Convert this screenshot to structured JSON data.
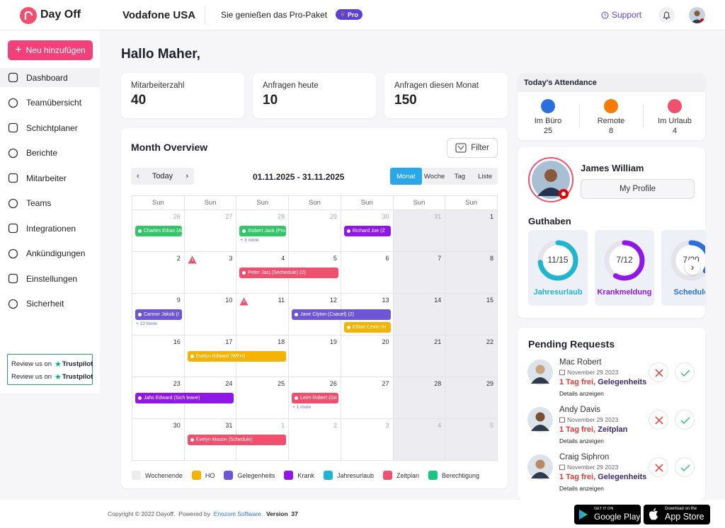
{
  "header": {
    "logo": "Day Off",
    "company": "Vodafone USA",
    "plan": "Sie genießen das Pro-Paket",
    "badge": "Pro",
    "support": "Support"
  },
  "sidebar": {
    "add_button": "Neu hinzufügen",
    "nav": [
      "Dashboard",
      "Teamübersicht",
      "Schichtplaner",
      "Berichte",
      "Mitarbeiter",
      "Teams",
      "Integrationen",
      "Ankündigungen",
      "Einstellungen",
      "Sicherheit"
    ],
    "review": [
      {
        "text": "Review us on",
        "brand": "Trustpilot"
      },
      {
        "text": "Review us on",
        "brand": "Trustpilot"
      }
    ]
  },
  "greeting": "Hallo Maher,",
  "stats": [
    {
      "label": "Mitarbeiterzahl",
      "value": 40
    },
    {
      "label": "Anfragen heute",
      "value": 10
    },
    {
      "label": "Anfragen diesen Monat",
      "value": 150
    }
  ],
  "attendance": {
    "title": "Today's Attendance",
    "items": [
      {
        "label": "Im Büro",
        "value": 25,
        "color": "#2a6fdb"
      },
      {
        "label": "Remote",
        "value": 8,
        "color": "#f57c00"
      },
      {
        "label": "Im Urlaub",
        "value": 4,
        "color": "#f0506e"
      }
    ]
  },
  "profile": {
    "name": "James William",
    "button": "My Profile"
  },
  "balance": {
    "title": "Guthaben",
    "items": [
      {
        "label": "11/15",
        "used": 11,
        "total": 15,
        "name": "Jahresurlaub",
        "color": "#1fb5d1"
      },
      {
        "label": "7/12",
        "used": 7,
        "total": 12,
        "name": "Krankmeldung",
        "color": "#8f17e8"
      },
      {
        "label": "7/20",
        "used": 7,
        "total": 20,
        "name": "Schedule",
        "color": "#2a6fdb"
      }
    ]
  },
  "calendar": {
    "title": "Month Overview",
    "filter": "Filter",
    "today": "Today",
    "range": "01.11.2025 - 31.11.2025",
    "views": [
      "Monat",
      "Woche",
      "Tag",
      "Liste"
    ],
    "active_view": 0,
    "weekdays": [
      "Sun",
      "Sun",
      "Sun",
      "Sun",
      "Sun",
      "Sun",
      "Sun"
    ],
    "weeks": [
      [
        26,
        27,
        28,
        29,
        30,
        31,
        1
      ],
      [
        2,
        3,
        4,
        5,
        6,
        7,
        8
      ],
      [
        9,
        10,
        11,
        12,
        13,
        14,
        15
      ],
      [
        16,
        17,
        18,
        19,
        20,
        21,
        22
      ],
      [
        23,
        24,
        25,
        26,
        27,
        28,
        29
      ],
      [
        30,
        31,
        1,
        2,
        3,
        4,
        5
      ]
    ],
    "events": [
      {
        "text": "Charles Ethan (Al",
        "color": "#34c46a",
        "cell": 0,
        "span": 1,
        "slot": 0
      },
      {
        "text": "Robert Jack (Pro",
        "color": "#34c46a",
        "cell": 2,
        "span": 1,
        "slot": 0
      },
      {
        "text": "Richard Joe (Z",
        "color": "#8f17e8",
        "cell": 4,
        "span": 1,
        "slot": 0
      },
      {
        "text": "Peter Jacj (Sechedule) (2)",
        "color": "#f0506e",
        "cell": 9,
        "span": 2,
        "slot": 0
      },
      {
        "text": "Cannor Jakob (I",
        "color": "#6e55d6",
        "cell": 14,
        "span": 1,
        "slot": 0
      },
      {
        "text": "Jane Clyton (Csauel) (2)",
        "color": "#6e55d6",
        "cell": 17,
        "span": 2,
        "slot": 0
      },
      {
        "text": "Ethan Cexin (H",
        "color": "#f5b301",
        "cell": 18,
        "span": 1,
        "slot": 1
      },
      {
        "text": "Evelyn Edward (WFH)",
        "color": "#f5b301",
        "cell": 22,
        "span": 2,
        "slot": 0
      },
      {
        "text": "Jahs Edward (Sich leave)",
        "color": "#8f17e8",
        "cell": 28,
        "span": 2,
        "slot": 0
      },
      {
        "text": "Leim Robert (Ge",
        "color": "#f0506e",
        "cell": 31,
        "span": 1,
        "slot": 0
      },
      {
        "text": "Evelyn Mason (Schedule)",
        "color": "#f0506e",
        "cell": 36,
        "span": 2,
        "slot": 0
      }
    ],
    "more": [
      {
        "text": "+ 3 more",
        "cell": 2
      },
      {
        "text": "+ 13 more",
        "cell": 14
      },
      {
        "text": "+ 1 more",
        "cell": 31
      }
    ],
    "alert_cells": [
      8,
      16
    ],
    "legend": [
      {
        "label": "Wochenende",
        "color": "#ececf0"
      },
      {
        "label": "HO",
        "color": "#f5b301"
      },
      {
        "label": "Gelegenheits",
        "color": "#6e55d6"
      },
      {
        "label": "Krank",
        "color": "#8f17e8"
      },
      {
        "label": "Jahresurlaub",
        "color": "#1fb5d1"
      },
      {
        "label": "Zeitplan",
        "color": "#f0506e"
      },
      {
        "label": "Berechtigung",
        "color": "#16c784"
      }
    ]
  },
  "requests": {
    "title": "Pending Requests",
    "items": [
      {
        "name": "Mac Robert",
        "date": "November 29 2023",
        "amount": "1 Tag frei,",
        "kind": "Gelegenheits",
        "link": "Details anzeigen"
      },
      {
        "name": "Andy Davis",
        "date": "November 29 2023",
        "amount": "1 Tag frei,",
        "kind": "Zeitplan",
        "link": "Details anzeigen"
      },
      {
        "name": "Craig Siphron",
        "date": "November 29 2023",
        "amount": "1 Tag frei,",
        "kind": "Gelegenheits",
        "link": "Details anzeigen"
      }
    ]
  },
  "footer": {
    "copyright": "Copyright © 2022 Dayoff.  Powered by",
    "company": "Enozom Software.",
    "version_label": "Version",
    "version": 37,
    "google": {
      "small": "GET IT ON",
      "big": "Google Play"
    },
    "apple": {
      "small": "Download on the",
      "big": "App Store"
    }
  }
}
